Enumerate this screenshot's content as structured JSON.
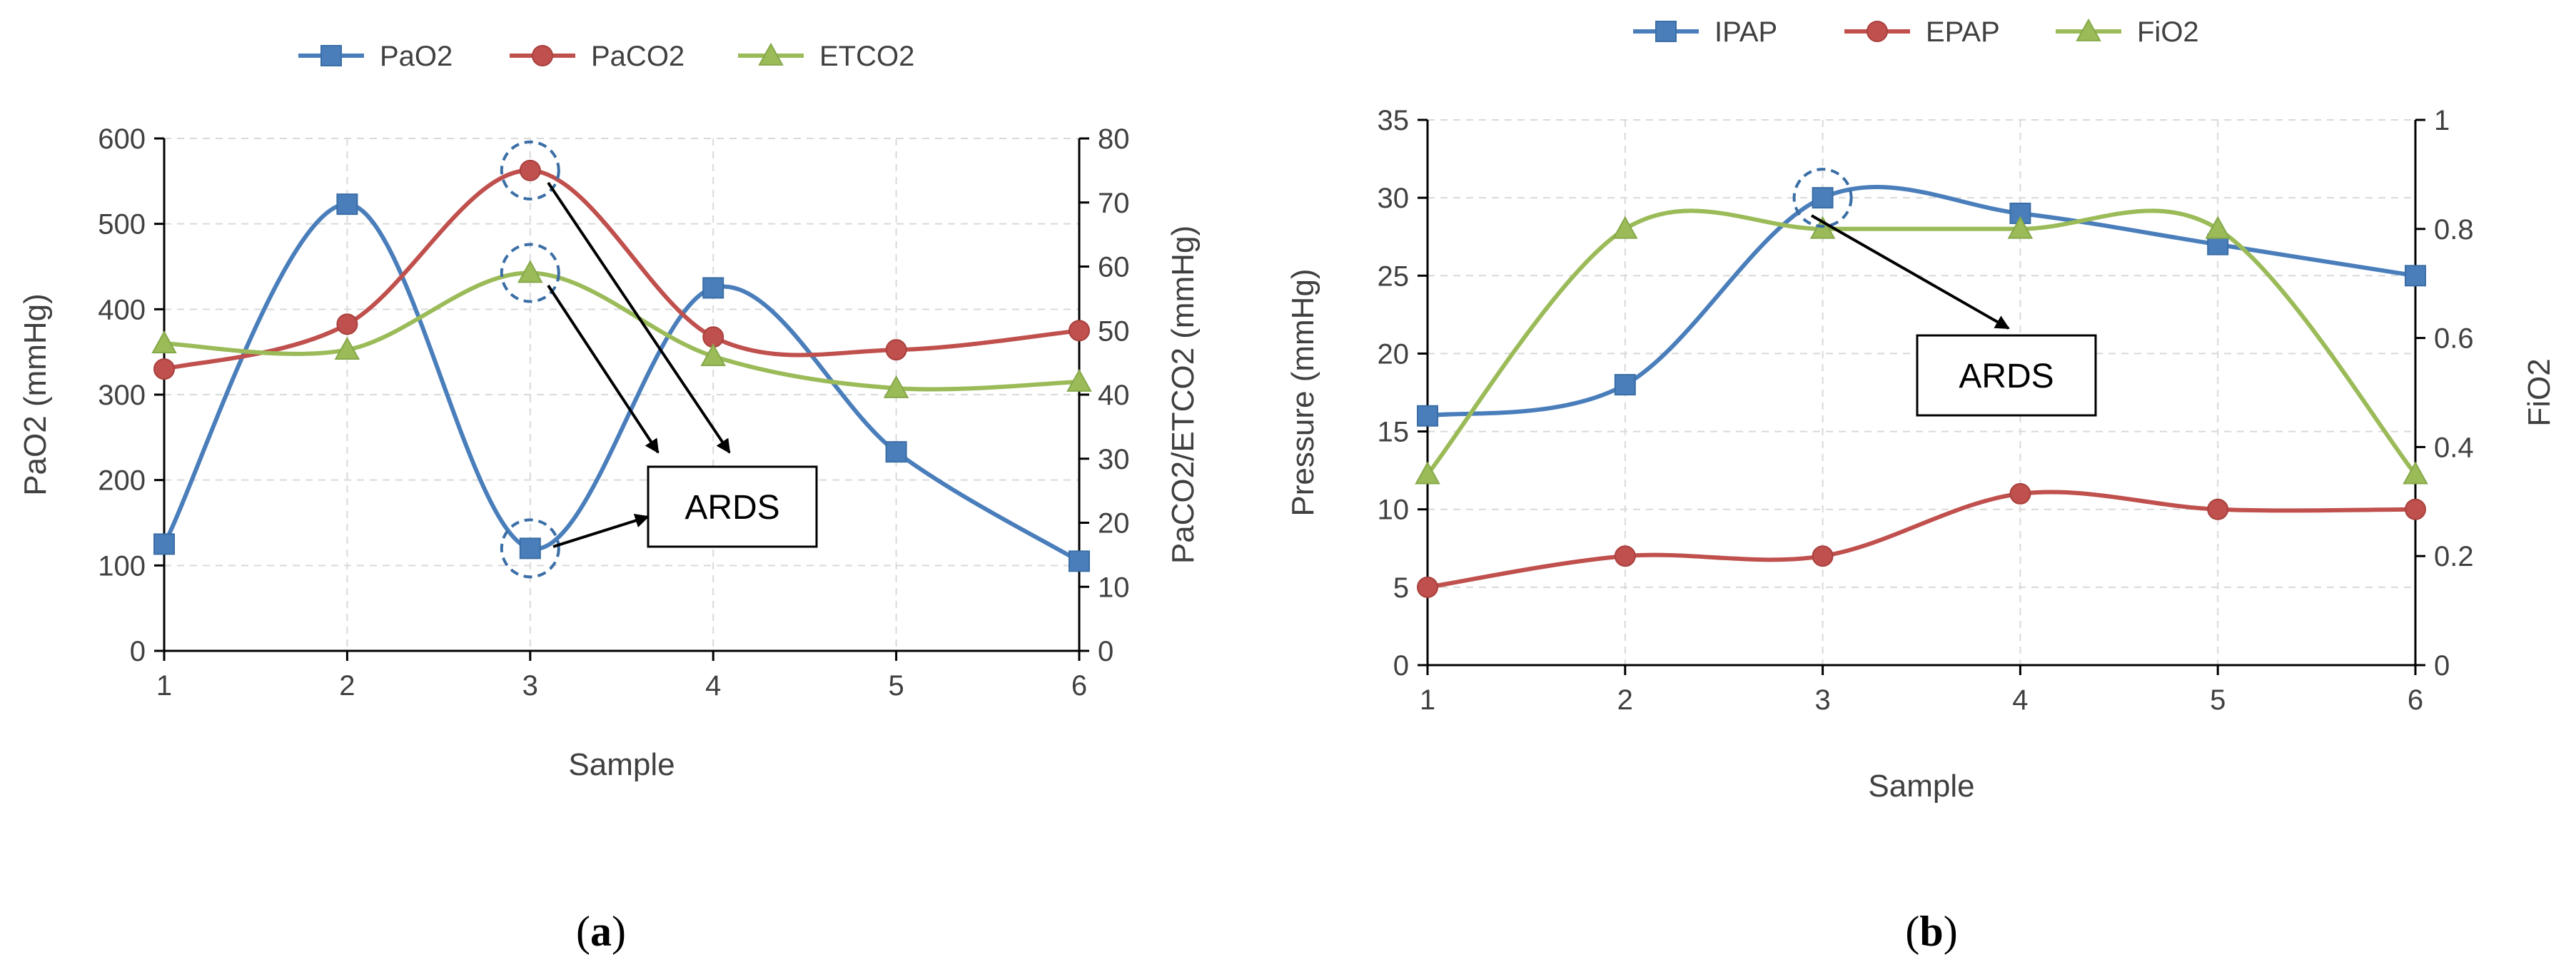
{
  "chart_data": [
    {
      "type": "line",
      "panel_label": "a",
      "xlabel": "Sample",
      "ylabel": "PaO2 (mmHg)",
      "y2label": "PaCO2/ETCO2 (mmHg)",
      "x": [
        1,
        2,
        3,
        4,
        5,
        6
      ],
      "xlim": [
        1,
        6
      ],
      "ylim": [
        0,
        600
      ],
      "y_ticks": [
        0,
        100,
        200,
        300,
        400,
        500,
        600
      ],
      "y2lim": [
        0,
        80
      ],
      "y2_ticks": [
        0,
        10,
        20,
        30,
        40,
        50,
        60,
        70,
        80
      ],
      "grid": true,
      "legend_position": "top",
      "series": [
        {
          "name": "PaO2",
          "axis": "left",
          "marker": "square",
          "color": "#4a7ebb",
          "values": [
            125,
            523,
            120,
            425,
            233,
            105
          ]
        },
        {
          "name": "PaCO2",
          "axis": "right",
          "marker": "circle",
          "color": "#c0504d",
          "values": [
            44,
            51,
            75,
            49,
            47,
            50
          ]
        },
        {
          "name": "ETCO2",
          "axis": "right",
          "marker": "triangle",
          "color": "#9bbb59",
          "values": [
            48,
            47,
            59,
            46,
            41,
            42
          ]
        }
      ],
      "annotation": {
        "text": "ARDS",
        "targets": [
          {
            "series": "PaCO2",
            "x": 3
          },
          {
            "series": "ETCO2",
            "x": 3
          },
          {
            "series": "PaO2",
            "x": 3
          }
        ]
      }
    },
    {
      "type": "line",
      "panel_label": "b",
      "xlabel": "Sample",
      "ylabel": "Pressure (mmHg)",
      "y2label": "FiO2",
      "x": [
        1,
        2,
        3,
        4,
        5,
        6
      ],
      "xlim": [
        1,
        6
      ],
      "ylim": [
        0,
        35
      ],
      "y_ticks": [
        0,
        5,
        10,
        15,
        20,
        25,
        30,
        35
      ],
      "y2lim": [
        0,
        1
      ],
      "y2_ticks": [
        0,
        0.2,
        0.4,
        0.6,
        0.8,
        1
      ],
      "y2_tick_labels": [
        "0",
        "0.2",
        "0.4",
        "0.6",
        "0.8",
        "1"
      ],
      "grid": true,
      "legend_position": "top",
      "series": [
        {
          "name": "IPAP",
          "axis": "left",
          "marker": "square",
          "color": "#4a7ebb",
          "values": [
            16,
            18,
            30,
            29,
            27,
            25
          ]
        },
        {
          "name": "EPAP",
          "axis": "left",
          "marker": "circle",
          "color": "#c0504d",
          "values": [
            5,
            7,
            7,
            11,
            10,
            10
          ]
        },
        {
          "name": "FiO2",
          "axis": "right",
          "marker": "triangle",
          "color": "#9bbb59",
          "values": [
            0.35,
            0.8,
            0.8,
            0.8,
            0.8,
            0.35
          ]
        }
      ],
      "annotation": {
        "text": "ARDS",
        "targets": [
          {
            "series": "IPAP",
            "x": 3
          }
        ]
      }
    }
  ]
}
